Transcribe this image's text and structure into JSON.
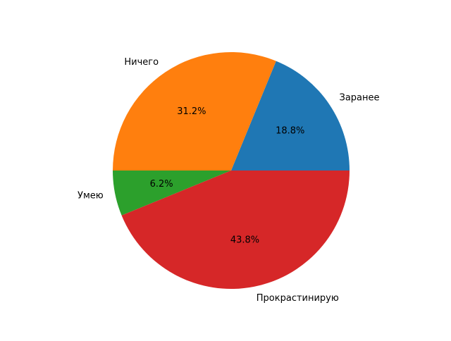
{
  "chart_data": {
    "type": "pie",
    "title": "",
    "categories": [
      "Заранее",
      "Ничего",
      "Умею",
      "Прокрастинирую"
    ],
    "values": [
      18.8,
      31.2,
      6.2,
      43.8
    ],
    "percent_labels": [
      "18.8%",
      "31.2%",
      "6.2%",
      "43.8%"
    ],
    "colors": [
      "#1f77b4",
      "#ff7f0e",
      "#2ca02c",
      "#d62728"
    ],
    "start_angle_deg": 0,
    "direction": "counterclockwise",
    "legend": "none"
  }
}
